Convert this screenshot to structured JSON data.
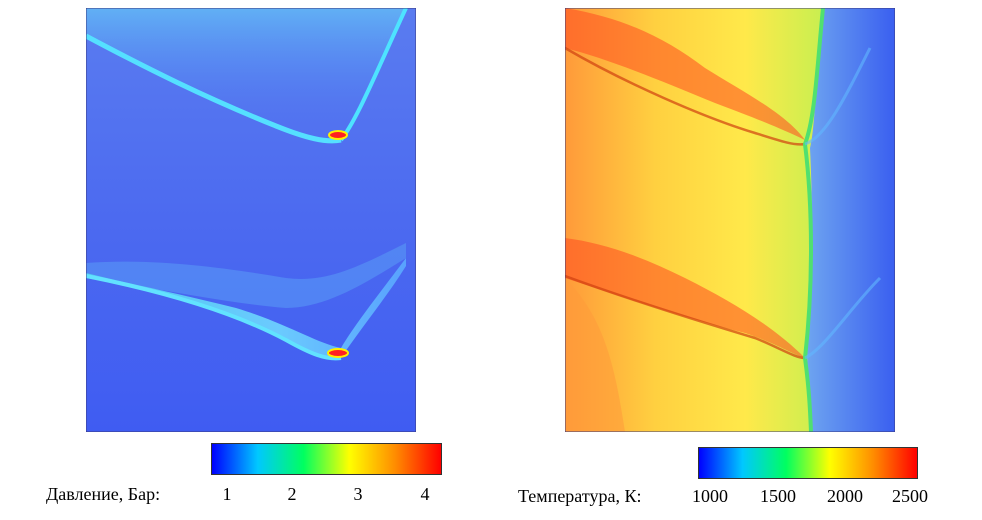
{
  "pressure": {
    "label": "Давление, Бар:",
    "ticks": [
      "1",
      "2",
      "3",
      "4"
    ],
    "colorbar_colors": [
      "#0000ff",
      "#00c8ff",
      "#00ff60",
      "#ffff00",
      "#ff8c00",
      "#ff0000"
    ]
  },
  "temperature": {
    "label": "Температура, К:",
    "ticks": [
      "1000",
      "1500",
      "2000",
      "2500"
    ],
    "colorbar_colors": [
      "#0000ff",
      "#00c8ff",
      "#00ff60",
      "#ffff00",
      "#ff8c00",
      "#ff0000"
    ]
  }
}
